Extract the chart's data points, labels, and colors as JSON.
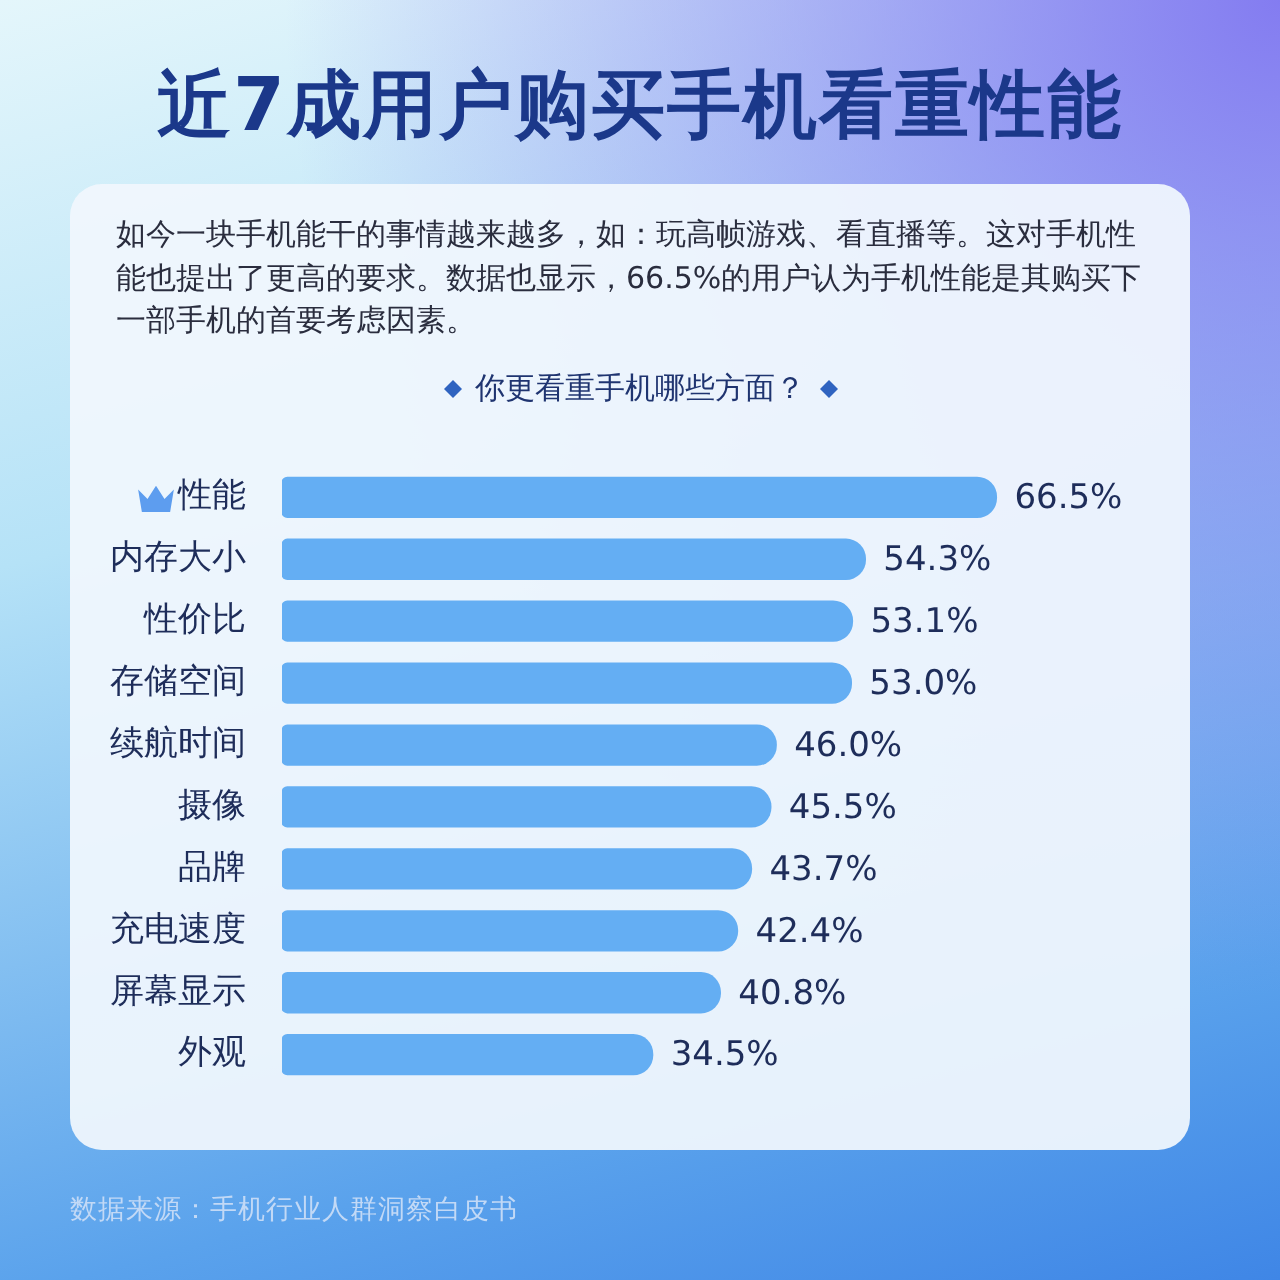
{
  "chart_data": {
    "type": "bar",
    "orientation": "horizontal",
    "title": "近7成用户购买手机看重性能",
    "subtitle": "如今一块手机能干的事情越来越多，如：玩高帧游戏、看直播等。这对手机性能也提出了更高的要求。数据也显示，66.5%的用户认为手机性能是其购买下一部手机的首要考虑因素。",
    "categories": [
      "性能",
      "内存大小",
      "性价比",
      "存储空间",
      "续航时间",
      "摄像",
      "品牌",
      "充电速度",
      "屏幕显示",
      "外观"
    ],
    "values": [
      66.5,
      54.3,
      53.1,
      53.0,
      46.0,
      45.5,
      43.7,
      42.4,
      40.8,
      34.5
    ],
    "value_labels": [
      "66.5%",
      "54.3%",
      "53.1%",
      "53.0%",
      "46.0%",
      "45.5%",
      "43.7%",
      "42.4%",
      "40.8%",
      "34.5%"
    ],
    "color": "#64aef3",
    "tick_labels": "y",
    "annotations": [
      "你更看重手机哪些方面？",
      "数据来源：手机行业人群洞察白皮书"
    ]
  }
}
